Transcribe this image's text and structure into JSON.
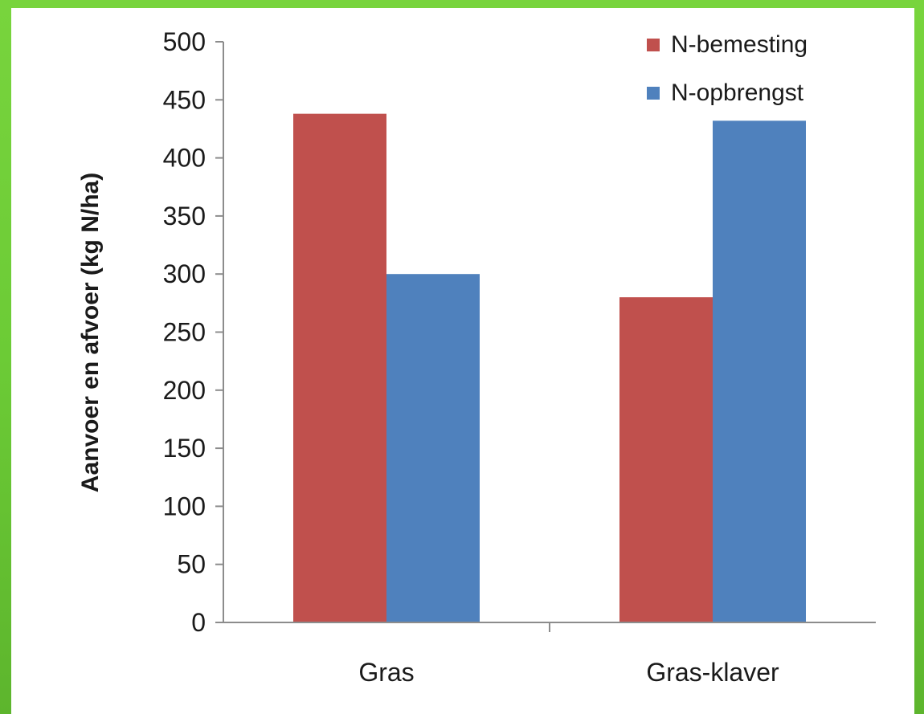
{
  "chart_data": {
    "type": "bar",
    "title": "",
    "xlabel": "",
    "ylabel": "Aanvoer en afvoer (kg N/ha)",
    "ylim": [
      0,
      500
    ],
    "yticks": [
      0,
      50,
      100,
      150,
      200,
      250,
      300,
      350,
      400,
      450,
      500
    ],
    "categories": [
      "Gras",
      "Gras-klaver"
    ],
    "series": [
      {
        "name": "N-bemesting",
        "values": [
          438,
          280
        ],
        "color": "#c0504d"
      },
      {
        "name": "N-opbrengst",
        "values": [
          300,
          432
        ],
        "color": "#4f81bd"
      }
    ],
    "legend_position": "top-right",
    "grid": false
  }
}
